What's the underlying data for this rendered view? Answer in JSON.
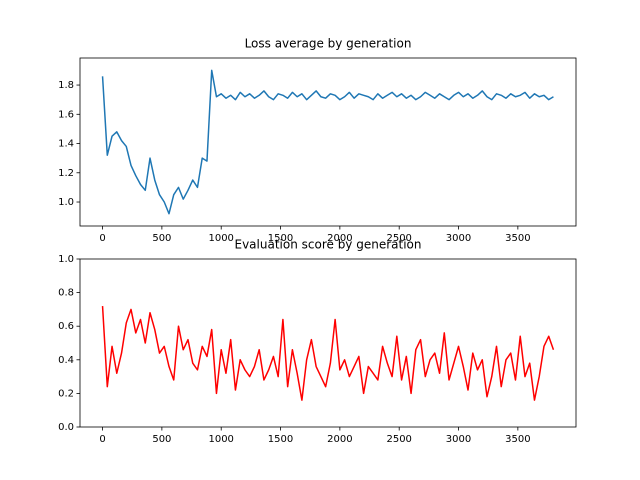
{
  "chart_data": [
    {
      "type": "line",
      "title": "Loss average by generation",
      "color": "#1f77b4",
      "x": [
        0,
        40,
        80,
        120,
        160,
        200,
        240,
        280,
        320,
        360,
        400,
        440,
        480,
        520,
        560,
        600,
        640,
        680,
        720,
        760,
        800,
        840,
        880,
        920,
        960,
        1000,
        1040,
        1080,
        1120,
        1160,
        1200,
        1240,
        1280,
        1320,
        1360,
        1400,
        1440,
        1480,
        1520,
        1560,
        1600,
        1640,
        1680,
        1720,
        1760,
        1800,
        1840,
        1880,
        1920,
        1960,
        2000,
        2040,
        2080,
        2120,
        2160,
        2200,
        2240,
        2280,
        2320,
        2360,
        2400,
        2440,
        2480,
        2520,
        2560,
        2600,
        2640,
        2680,
        2720,
        2760,
        2800,
        2840,
        2880,
        2920,
        2960,
        3000,
        3040,
        3080,
        3120,
        3160,
        3200,
        3240,
        3280,
        3320,
        3360,
        3400,
        3440,
        3480,
        3520,
        3560,
        3600,
        3640,
        3680,
        3720,
        3760,
        3800
      ],
      "values": [
        1.86,
        1.32,
        1.45,
        1.48,
        1.42,
        1.38,
        1.25,
        1.18,
        1.12,
        1.08,
        1.3,
        1.15,
        1.05,
        1.0,
        0.92,
        1.05,
        1.1,
        1.02,
        1.08,
        1.15,
        1.1,
        1.3,
        1.28,
        1.9,
        1.72,
        1.74,
        1.71,
        1.73,
        1.7,
        1.75,
        1.72,
        1.74,
        1.71,
        1.73,
        1.76,
        1.72,
        1.7,
        1.74,
        1.73,
        1.71,
        1.75,
        1.72,
        1.74,
        1.7,
        1.73,
        1.76,
        1.72,
        1.71,
        1.74,
        1.73,
        1.7,
        1.72,
        1.75,
        1.71,
        1.74,
        1.73,
        1.72,
        1.7,
        1.74,
        1.71,
        1.73,
        1.75,
        1.72,
        1.74,
        1.71,
        1.73,
        1.7,
        1.72,
        1.75,
        1.73,
        1.71,
        1.74,
        1.72,
        1.7,
        1.73,
        1.75,
        1.72,
        1.74,
        1.71,
        1.73,
        1.76,
        1.72,
        1.7,
        1.74,
        1.73,
        1.71,
        1.74,
        1.72,
        1.73,
        1.75,
        1.71,
        1.74,
        1.72,
        1.73,
        1.7,
        1.72
      ],
      "xlim": [
        -190,
        3990
      ],
      "xticks": [
        0,
        500,
        1000,
        1500,
        2000,
        2500,
        3000,
        3500
      ],
      "ylim": [
        0.836,
        1.985
      ],
      "yticks": [
        {
          "value": 1.0,
          "label": "1.0"
        },
        {
          "value": 1.2,
          "label": "1.2"
        },
        {
          "value": 1.4,
          "label": "1.4"
        },
        {
          "value": 1.6,
          "label": "1.6"
        },
        {
          "value": 1.8,
          "label": "1.8"
        }
      ]
    },
    {
      "type": "line",
      "title": "Evaluation score by generation",
      "color": "#ff0000",
      "x": [
        0,
        40,
        80,
        120,
        160,
        200,
        240,
        280,
        320,
        360,
        400,
        440,
        480,
        520,
        560,
        600,
        640,
        680,
        720,
        760,
        800,
        840,
        880,
        920,
        960,
        1000,
        1040,
        1080,
        1120,
        1160,
        1200,
        1240,
        1280,
        1320,
        1360,
        1400,
        1440,
        1480,
        1520,
        1560,
        1600,
        1640,
        1680,
        1720,
        1760,
        1800,
        1840,
        1880,
        1920,
        1960,
        2000,
        2040,
        2080,
        2120,
        2160,
        2200,
        2240,
        2280,
        2320,
        2360,
        2400,
        2440,
        2480,
        2520,
        2560,
        2600,
        2640,
        2680,
        2720,
        2760,
        2800,
        2840,
        2880,
        2920,
        2960,
        3000,
        3040,
        3080,
        3120,
        3160,
        3200,
        3240,
        3280,
        3320,
        3360,
        3400,
        3440,
        3480,
        3520,
        3560,
        3600,
        3640,
        3680,
        3720,
        3760,
        3800
      ],
      "values": [
        0.72,
        0.24,
        0.48,
        0.32,
        0.44,
        0.62,
        0.7,
        0.56,
        0.64,
        0.5,
        0.68,
        0.58,
        0.44,
        0.48,
        0.36,
        0.28,
        0.6,
        0.46,
        0.52,
        0.38,
        0.34,
        0.48,
        0.42,
        0.58,
        0.2,
        0.46,
        0.32,
        0.52,
        0.22,
        0.4,
        0.34,
        0.3,
        0.36,
        0.46,
        0.28,
        0.34,
        0.42,
        0.3,
        0.64,
        0.24,
        0.46,
        0.32,
        0.16,
        0.4,
        0.52,
        0.36,
        0.3,
        0.24,
        0.38,
        0.64,
        0.34,
        0.4,
        0.3,
        0.36,
        0.42,
        0.2,
        0.36,
        0.32,
        0.28,
        0.48,
        0.38,
        0.3,
        0.54,
        0.28,
        0.42,
        0.2,
        0.46,
        0.52,
        0.3,
        0.4,
        0.44,
        0.32,
        0.56,
        0.28,
        0.38,
        0.48,
        0.36,
        0.22,
        0.44,
        0.34,
        0.4,
        0.18,
        0.3,
        0.48,
        0.24,
        0.4,
        0.44,
        0.28,
        0.54,
        0.3,
        0.38,
        0.16,
        0.3,
        0.48,
        0.54,
        0.46
      ],
      "xlim": [
        -190,
        3990
      ],
      "xticks": [
        0,
        500,
        1000,
        1500,
        2000,
        2500,
        3000,
        3500
      ],
      "ylim": [
        0,
        1
      ],
      "yticks": [
        {
          "value": 0.0,
          "label": "0.0"
        },
        {
          "value": 0.2,
          "label": "0.2"
        },
        {
          "value": 0.4,
          "label": "0.4"
        },
        {
          "value": 0.6,
          "label": "0.6"
        },
        {
          "value": 0.8,
          "label": "0.8"
        },
        {
          "value": 1.0,
          "label": "1.0"
        }
      ]
    }
  ]
}
